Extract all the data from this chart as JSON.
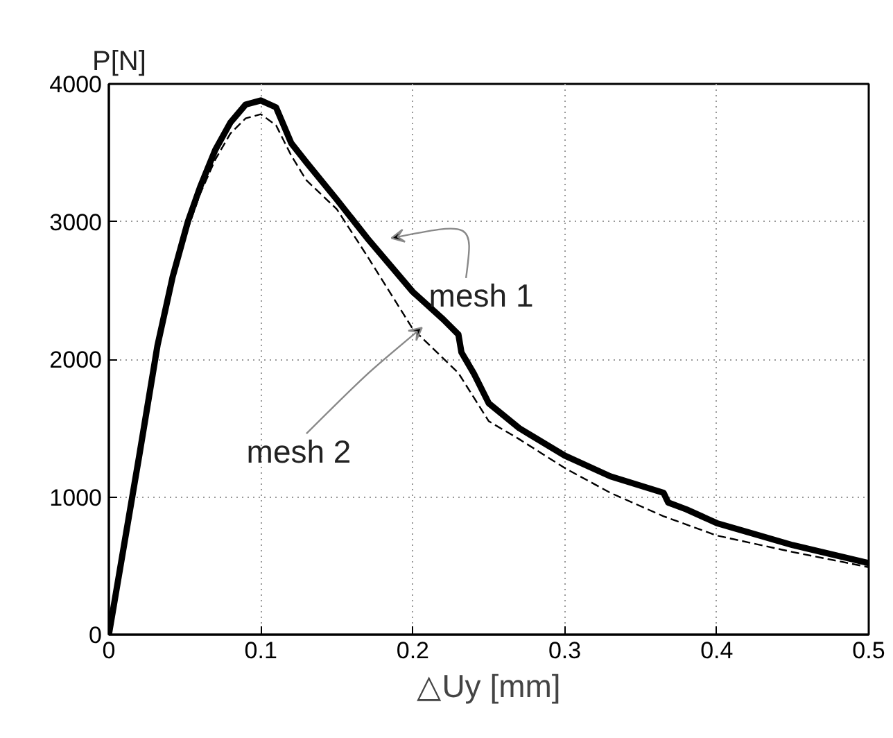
{
  "chart_data": {
    "type": "line",
    "xlabel": "△Uy [mm]",
    "ylabel": "P[N]",
    "xlim": [
      0,
      0.5
    ],
    "ylim": [
      0,
      4000
    ],
    "xticks": [
      0,
      0.1,
      0.2,
      0.3,
      0.4,
      0.5
    ],
    "yticks": [
      0,
      1000,
      2000,
      3000,
      4000
    ],
    "grid": true,
    "series": [
      {
        "color": "#000000",
        "line_style": "solid",
        "x": [
          0,
          0.01,
          0.02,
          0.032,
          0.042,
          0.052,
          0.06,
          0.07,
          0.08,
          0.09,
          0.1,
          0.11,
          0.12,
          0.13,
          0.15,
          0.17,
          0.2,
          0.22,
          0.23,
          0.232,
          0.24,
          0.25,
          0.27,
          0.3,
          0.33,
          0.365,
          0.368,
          0.38,
          0.4,
          0.45,
          0.5
        ],
        "values": [
          0,
          650,
          1300,
          2100,
          2600,
          3000,
          3250,
          3520,
          3720,
          3850,
          3880,
          3830,
          3570,
          3430,
          3160,
          2880,
          2490,
          2290,
          2180,
          2050,
          1900,
          1680,
          1500,
          1300,
          1150,
          1030,
          960,
          910,
          810,
          650,
          520
        ]
      },
      {
        "color": "#000000",
        "line_style": "dashed",
        "x": [
          0,
          0.01,
          0.02,
          0.032,
          0.042,
          0.052,
          0.06,
          0.07,
          0.08,
          0.09,
          0.1,
          0.11,
          0.12,
          0.13,
          0.15,
          0.17,
          0.2,
          0.23,
          0.25,
          0.27,
          0.3,
          0.33,
          0.365,
          0.4,
          0.45,
          0.5
        ],
        "values": [
          0,
          640,
          1280,
          2050,
          2560,
          2950,
          3200,
          3450,
          3640,
          3750,
          3780,
          3700,
          3480,
          3300,
          3090,
          2750,
          2220,
          1900,
          1550,
          1420,
          1210,
          1030,
          860,
          720,
          600,
          490
        ]
      }
    ],
    "annotations": [
      {
        "text": "mesh 1",
        "x": 0.18,
        "y": 2850
      },
      {
        "text": "mesh 2",
        "x": 0.2,
        "y": 2200
      }
    ]
  }
}
